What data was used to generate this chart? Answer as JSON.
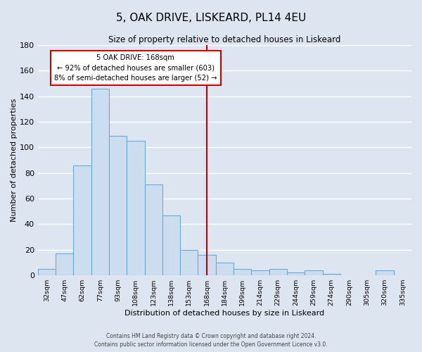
{
  "title": "5, OAK DRIVE, LISKEARD, PL14 4EU",
  "subtitle": "Size of property relative to detached houses in Liskeard",
  "xlabel": "Distribution of detached houses by size in Liskeard",
  "ylabel": "Number of detached properties",
  "categories": [
    "32sqm",
    "47sqm",
    "62sqm",
    "77sqm",
    "93sqm",
    "108sqm",
    "123sqm",
    "138sqm",
    "153sqm",
    "168sqm",
    "184sqm",
    "199sqm",
    "214sqm",
    "229sqm",
    "244sqm",
    "259sqm",
    "274sqm",
    "290sqm",
    "305sqm",
    "320sqm",
    "335sqm"
  ],
  "values": [
    5,
    17,
    86,
    146,
    109,
    105,
    71,
    47,
    20,
    16,
    10,
    5,
    4,
    5,
    2,
    4,
    1,
    0,
    0,
    4,
    0
  ],
  "bar_color": "#ccddf0",
  "bar_edge_color": "#6aaad4",
  "vline_index": 9,
  "vline_color": "#cc0000",
  "annotation_title": "5 OAK DRIVE: 168sqm",
  "annotation_line1": "← 92% of detached houses are smaller (603)",
  "annotation_line2": "8% of semi-detached houses are larger (52) →",
  "annotation_box_color": "#cc0000",
  "ylim": [
    0,
    180
  ],
  "yticks": [
    0,
    20,
    40,
    60,
    80,
    100,
    120,
    140,
    160,
    180
  ],
  "footer1": "Contains HM Land Registry data © Crown copyright and database right 2024.",
  "footer2": "Contains public sector information licensed under the Open Government Licence v3.0.",
  "background_color": "#dde6f0",
  "grid_color": "#ffffff"
}
